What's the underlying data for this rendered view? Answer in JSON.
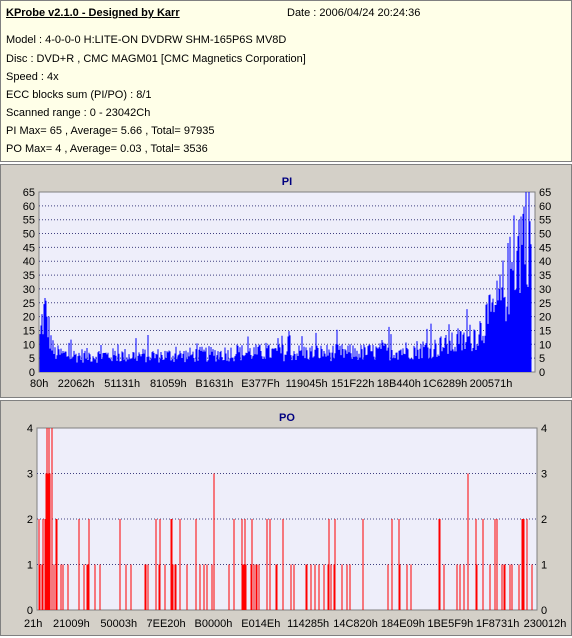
{
  "header": {
    "title": "KProbe v2.1.0 - Designed by Karr",
    "date": "Date : 2006/04/24 20:24:36",
    "lines": [
      "Model : 4-0-0-0 H:LITE-ON DVDRW SHM-165P6S MV8D",
      "Disc : DVD+R , CMC MAGM01 [CMC Magnetics Corporation]",
      "Speed : 4x",
      "ECC blocks sum (PI/PO) : 8/1",
      "Scanned range : 0 - 23042Ch",
      "PI Max= 65 , Average= 5.66 , Total= 97935",
      "PO Max= 4 , Average= 0.03 , Total= 3536"
    ]
  },
  "colors": {
    "panel_bg": "#d4d0c8",
    "plot_bg": "#eeeefa",
    "grid": "#404080",
    "pi_series": "#0000ff",
    "po_series": "#ff0000",
    "title_text": "#000080",
    "info_bg": "#ffffe8"
  },
  "chart_data": [
    {
      "type": "bar",
      "title": "PI",
      "xlabel": "",
      "ylabel": "",
      "ylim": [
        0,
        65
      ],
      "yticks": [
        0,
        5,
        10,
        15,
        20,
        25,
        30,
        35,
        40,
        45,
        50,
        55,
        60,
        65
      ],
      "xtick_labels": [
        "80h",
        "22062h",
        "51131h",
        "81059h",
        "B1631h",
        "E377Fh",
        "119045h",
        "151F22h",
        "18B440h",
        "1C6289h",
        "200571h"
      ],
      "grid": true,
      "series": [
        {
          "name": "PI",
          "profile": [
            [
              0,
              12
            ],
            [
              2,
              18
            ],
            [
              5,
              22
            ],
            [
              8,
              17
            ],
            [
              11,
              11
            ],
            [
              14,
              7
            ],
            [
              30,
              6
            ],
            [
              60,
              6
            ],
            [
              100,
              6
            ],
            [
              140,
              6
            ],
            [
              200,
              7
            ],
            [
              260,
              7
            ],
            [
              320,
              7
            ],
            [
              370,
              8
            ],
            [
              400,
              9
            ],
            [
              425,
              11
            ],
            [
              440,
              15
            ],
            [
              455,
              22
            ],
            [
              465,
              30
            ],
            [
              475,
              40
            ],
            [
              482,
              50
            ],
            [
              487,
              55
            ]
          ],
          "max": 65
        }
      ]
    },
    {
      "type": "bar",
      "title": "PO",
      "xlabel": "",
      "ylabel": "",
      "ylim": [
        0,
        4
      ],
      "yticks": [
        0,
        1,
        2,
        3,
        4
      ],
      "xtick_labels": [
        "21h",
        "21009h",
        "50003h",
        "7EE20h",
        "B0000h",
        "E014Eh",
        "114285h",
        "14C820h",
        "184E09h",
        "1BE5F9h",
        "1F8731h",
        "230012h"
      ],
      "grid": true,
      "series": [
        {
          "name": "PO",
          "values_note_free": true,
          "spikes": [
            {
              "i": 8,
              "v": 3
            },
            {
              "i": 9,
              "v": 4
            },
            {
              "i": 10,
              "v": 3
            },
            {
              "i": 11,
              "v": 4
            },
            {
              "i": 12,
              "v": 3
            },
            {
              "i": 14,
              "v": 4
            },
            {
              "i": 176,
              "v": 3
            },
            {
              "i": 430,
              "v": 3
            }
          ],
          "max": 4
        }
      ]
    }
  ]
}
